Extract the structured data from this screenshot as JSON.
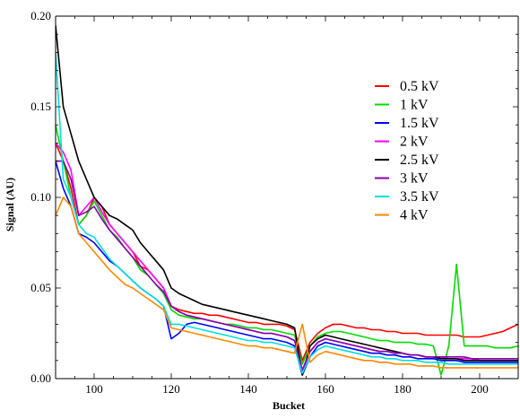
{
  "chart_data": {
    "type": "line",
    "title": "",
    "xlabel": "Bucket",
    "ylabel": "Signal (AU)",
    "xlim": [
      90,
      210
    ],
    "ylim": [
      0,
      0.2
    ],
    "x_ticks": [
      100,
      120,
      140,
      160,
      180,
      200
    ],
    "x_tick_labels": [
      "100",
      "120",
      "140",
      "160",
      "180",
      "200"
    ],
    "y_ticks": [
      0,
      0.05,
      0.1,
      0.15,
      0.2
    ],
    "y_tick_labels": [
      "0.00",
      "0.05",
      "0.10",
      "0.15",
      "0.20"
    ],
    "grid": false,
    "legend_position": "top-right",
    "x": [
      90,
      92,
      94,
      96,
      98,
      100,
      102,
      104,
      106,
      108,
      110,
      112,
      114,
      116,
      118,
      120,
      122,
      124,
      126,
      128,
      130,
      132,
      134,
      136,
      138,
      140,
      142,
      144,
      146,
      148,
      150,
      152,
      154,
      156,
      158,
      160,
      162,
      164,
      166,
      168,
      170,
      172,
      174,
      176,
      178,
      180,
      182,
      184,
      186,
      188,
      190,
      192,
      194,
      196,
      198,
      200,
      202,
      204,
      206,
      208,
      210
    ],
    "series": [
      {
        "name": "0.5 kV",
        "color": "#ff0000",
        "values": [
          0.13,
          0.12,
          0.105,
          0.085,
          0.09,
          0.1,
          0.095,
          0.085,
          0.08,
          0.075,
          0.07,
          0.062,
          0.06,
          0.055,
          0.05,
          0.04,
          0.038,
          0.037,
          0.036,
          0.036,
          0.035,
          0.035,
          0.034,
          0.033,
          0.032,
          0.031,
          0.031,
          0.03,
          0.03,
          0.03,
          0.029,
          0.027,
          0.01,
          0.02,
          0.025,
          0.028,
          0.03,
          0.03,
          0.029,
          0.028,
          0.028,
          0.027,
          0.027,
          0.026,
          0.026,
          0.025,
          0.025,
          0.025,
          0.024,
          0.024,
          0.024,
          0.024,
          0.024,
          0.023,
          0.023,
          0.023,
          0.024,
          0.025,
          0.026,
          0.028,
          0.03
        ]
      },
      {
        "name": "1 kV",
        "color": "#00dd00",
        "values": [
          0.14,
          0.12,
          0.1,
          0.085,
          0.09,
          0.098,
          0.09,
          0.082,
          0.078,
          0.072,
          0.067,
          0.06,
          0.057,
          0.052,
          0.047,
          0.038,
          0.035,
          0.034,
          0.033,
          0.033,
          0.032,
          0.031,
          0.03,
          0.03,
          0.029,
          0.028,
          0.028,
          0.027,
          0.027,
          0.026,
          0.025,
          0.024,
          0.008,
          0.018,
          0.023,
          0.025,
          0.026,
          0.026,
          0.025,
          0.024,
          0.023,
          0.022,
          0.021,
          0.021,
          0.02,
          0.02,
          0.02,
          0.019,
          0.019,
          0.018,
          0.002,
          0.018,
          0.063,
          0.018,
          0.018,
          0.018,
          0.018,
          0.017,
          0.017,
          0.017,
          0.018
        ]
      },
      {
        "name": "1.5 kV",
        "color": "#0000ff",
        "values": [
          0.12,
          0.105,
          0.095,
          0.08,
          0.078,
          0.075,
          0.07,
          0.065,
          0.062,
          0.058,
          0.054,
          0.05,
          0.047,
          0.044,
          0.04,
          0.022,
          0.025,
          0.03,
          0.031,
          0.03,
          0.029,
          0.028,
          0.027,
          0.026,
          0.025,
          0.024,
          0.023,
          0.022,
          0.022,
          0.021,
          0.02,
          0.018,
          0.002,
          0.012,
          0.018,
          0.02,
          0.019,
          0.018,
          0.017,
          0.016,
          0.015,
          0.014,
          0.014,
          0.013,
          0.013,
          0.012,
          0.012,
          0.011,
          0.011,
          0.011,
          0.01,
          0.01,
          0.01,
          0.009,
          0.009,
          0.009,
          0.009,
          0.009,
          0.009,
          0.009,
          0.009
        ]
      },
      {
        "name": "2 kV",
        "color": "#ff00ff",
        "values": [
          0.13,
          0.125,
          0.115,
          0.09,
          0.095,
          0.1,
          0.092,
          0.085,
          0.08,
          0.075,
          0.07,
          0.065,
          0.06,
          0.055,
          0.05,
          0.04,
          0.037,
          0.035,
          0.034,
          0.033,
          0.032,
          0.031,
          0.03,
          0.029,
          0.028,
          0.027,
          0.026,
          0.025,
          0.025,
          0.024,
          0.023,
          0.021,
          0.005,
          0.015,
          0.02,
          0.022,
          0.021,
          0.02,
          0.019,
          0.018,
          0.017,
          0.016,
          0.015,
          0.015,
          0.014,
          0.014,
          0.013,
          0.013,
          0.012,
          0.012,
          0.012,
          0.011,
          0.011,
          0.011,
          0.011,
          0.01,
          0.01,
          0.01,
          0.01,
          0.01,
          0.01
        ]
      },
      {
        "name": "2.5 kV",
        "color": "#000000",
        "values": [
          0.195,
          0.15,
          0.135,
          0.12,
          0.11,
          0.1,
          0.095,
          0.09,
          0.088,
          0.085,
          0.082,
          0.075,
          0.07,
          0.065,
          0.06,
          0.05,
          0.047,
          0.045,
          0.043,
          0.041,
          0.04,
          0.039,
          0.038,
          0.037,
          0.036,
          0.035,
          0.034,
          0.033,
          0.032,
          0.031,
          0.03,
          0.028,
          0.002,
          0.018,
          0.022,
          0.024,
          0.023,
          0.022,
          0.021,
          0.02,
          0.019,
          0.018,
          0.017,
          0.016,
          0.015,
          0.014,
          0.013,
          0.013,
          0.012,
          0.012,
          0.011,
          0.011,
          0.011,
          0.01,
          0.01,
          0.01,
          0.01,
          0.01,
          0.01,
          0.01,
          0.01
        ]
      },
      {
        "name": "3 kV",
        "color": "#8800aa",
        "values": [
          0.12,
          0.12,
          0.11,
          0.09,
          0.092,
          0.095,
          0.088,
          0.082,
          0.077,
          0.072,
          0.067,
          0.062,
          0.057,
          0.052,
          0.048,
          0.04,
          0.037,
          0.035,
          0.034,
          0.033,
          0.032,
          0.031,
          0.03,
          0.029,
          0.028,
          0.027,
          0.026,
          0.025,
          0.025,
          0.024,
          0.023,
          0.021,
          0.004,
          0.015,
          0.02,
          0.022,
          0.021,
          0.02,
          0.019,
          0.018,
          0.017,
          0.016,
          0.015,
          0.015,
          0.014,
          0.014,
          0.013,
          0.013,
          0.012,
          0.012,
          0.012,
          0.012,
          0.012,
          0.012,
          0.011,
          0.011,
          0.011,
          0.011,
          0.011,
          0.011,
          0.011
        ]
      },
      {
        "name": "3.5 kV",
        "color": "#00e0e0",
        "values": [
          0.18,
          0.11,
          0.1,
          0.085,
          0.08,
          0.078,
          0.072,
          0.066,
          0.062,
          0.058,
          0.054,
          0.05,
          0.047,
          0.044,
          0.04,
          0.03,
          0.03,
          0.029,
          0.028,
          0.027,
          0.026,
          0.025,
          0.024,
          0.023,
          0.022,
          0.021,
          0.021,
          0.02,
          0.02,
          0.019,
          0.018,
          0.017,
          0.003,
          0.012,
          0.016,
          0.018,
          0.017,
          0.016,
          0.015,
          0.014,
          0.013,
          0.012,
          0.012,
          0.011,
          0.011,
          0.01,
          0.01,
          0.01,
          0.009,
          0.009,
          0.009,
          0.008,
          0.008,
          0.008,
          0.008,
          0.008,
          0.008,
          0.008,
          0.008,
          0.008,
          0.008
        ]
      },
      {
        "name": "4 kV",
        "color": "#ff8800",
        "values": [
          0.09,
          0.1,
          0.095,
          0.08,
          0.075,
          0.07,
          0.065,
          0.06,
          0.056,
          0.052,
          0.05,
          0.047,
          0.044,
          0.041,
          0.038,
          0.028,
          0.027,
          0.026,
          0.025,
          0.024,
          0.023,
          0.022,
          0.021,
          0.02,
          0.019,
          0.018,
          0.018,
          0.017,
          0.017,
          0.016,
          0.015,
          0.014,
          0.03,
          0.009,
          0.013,
          0.015,
          0.014,
          0.013,
          0.012,
          0.011,
          0.01,
          0.01,
          0.009,
          0.009,
          0.008,
          0.008,
          0.008,
          0.007,
          0.007,
          0.007,
          0.006,
          0.006,
          0.006,
          0.006,
          0.006,
          0.006,
          0.006,
          0.006,
          0.006,
          0.006,
          0.006
        ]
      }
    ]
  }
}
